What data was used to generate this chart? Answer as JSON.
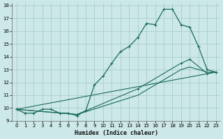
{
  "xlabel": "Humidex (Indice chaleur)",
  "background_color": "#cce8e8",
  "grid_color": "#aacccc",
  "line_color": "#1a6b5a",
  "xlim": [
    -0.5,
    23.5
  ],
  "ylim": [
    9,
    18.2
  ],
  "xticks": [
    0,
    1,
    2,
    3,
    4,
    5,
    6,
    7,
    8,
    9,
    10,
    11,
    12,
    13,
    14,
    15,
    16,
    17,
    18,
    19,
    20,
    21,
    22,
    23
  ],
  "yticks": [
    9,
    10,
    11,
    12,
    13,
    14,
    15,
    16,
    17,
    18
  ],
  "main_x": [
    0,
    1,
    2,
    3,
    4,
    5,
    6,
    7,
    8,
    9,
    10,
    11,
    12,
    13,
    14,
    15,
    16,
    17,
    18,
    19,
    20,
    21,
    22,
    23
  ],
  "main_y": [
    9.9,
    9.6,
    9.6,
    9.9,
    9.9,
    9.6,
    9.6,
    9.4,
    9.8,
    11.8,
    12.5,
    13.5,
    14.4,
    14.8,
    15.5,
    16.6,
    16.5,
    17.7,
    17.7,
    16.5,
    16.3,
    14.8,
    13.0,
    12.8
  ],
  "line1_x": [
    0,
    23
  ],
  "line1_y": [
    9.9,
    12.8
  ],
  "line2_x": [
    0,
    7,
    14,
    19,
    20,
    22,
    23
  ],
  "line2_y": [
    9.9,
    9.5,
    11.5,
    13.5,
    13.8,
    12.7,
    12.8
  ],
  "line3_x": [
    0,
    7,
    14,
    19,
    20,
    22,
    23
  ],
  "line3_y": [
    9.9,
    9.5,
    11.0,
    13.0,
    13.2,
    12.8,
    12.8
  ]
}
